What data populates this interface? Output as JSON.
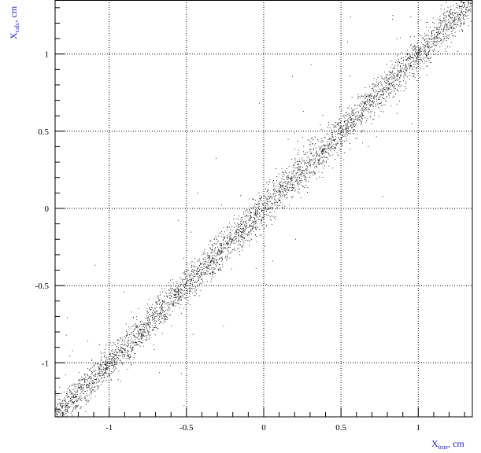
{
  "chart_data": {
    "type": "scatter",
    "title": "",
    "xlabel": {
      "main": "X",
      "sub": "true",
      "suffix": ", cm"
    },
    "ylabel": {
      "main": "X",
      "sub": "calc",
      "suffix": ", cm"
    },
    "xlim": [
      -1.35,
      1.35
    ],
    "ylim": [
      -1.35,
      1.35
    ],
    "x_ticks": [
      {
        "value": -1,
        "label": "-1"
      },
      {
        "value": -0.5,
        "label": "-0.5"
      },
      {
        "value": 0,
        "label": "0"
      },
      {
        "value": 0.5,
        "label": "0.5"
      },
      {
        "value": 1,
        "label": "1"
      }
    ],
    "y_ticks": [
      {
        "value": -1,
        "label": "-1"
      },
      {
        "value": -0.5,
        "label": "-0.5"
      },
      {
        "value": 0,
        "label": "0"
      },
      {
        "value": 0.5,
        "label": "0.5"
      },
      {
        "value": 1,
        "label": "1"
      }
    ],
    "grid": true,
    "grid_style": "dotted",
    "series": [
      {
        "distribution": "y = x with gaussian scatter",
        "slope": 1.0,
        "intercept": 0.0,
        "sigma": 0.06,
        "points": 4200,
        "outliers": 90,
        "x_range": [
          -1.35,
          1.35
        ],
        "color": "#000000"
      }
    ]
  },
  "colors": {
    "axis_title": "#1c1cd0",
    "grid": "#000000",
    "points": "#000000"
  }
}
